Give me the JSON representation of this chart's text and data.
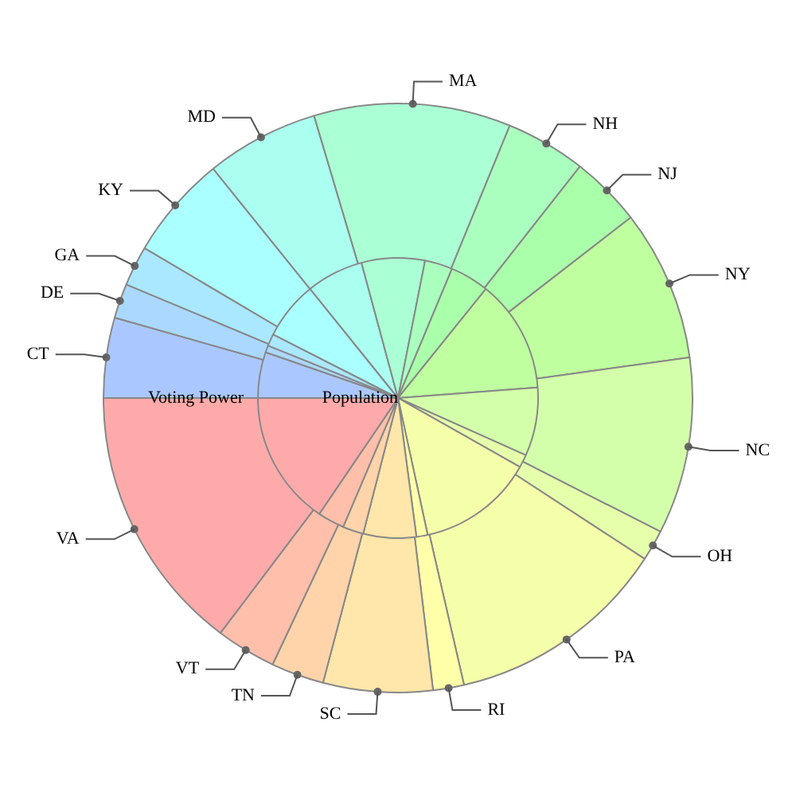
{
  "chart_data": {
    "type": "pie",
    "legend": false,
    "categories": [
      "CT",
      "DE",
      "GA",
      "KY",
      "MD",
      "MA",
      "NH",
      "NJ",
      "NY",
      "NC",
      "OH",
      "PA",
      "RI",
      "SC",
      "TN",
      "VT",
      "VA"
    ],
    "colors": [
      "#aac8ff",
      "#aad8ff",
      "#aae8ff",
      "#aaffff",
      "#aafff0",
      "#aaffd4",
      "#aaffbf",
      "#aaffaa",
      "#bfffa0",
      "#d4ffaa",
      "#e6ffaa",
      "#f5ffaa",
      "#ffffaa",
      "#ffe6aa",
      "#ffd4aa",
      "#ffbfaa",
      "#ffaaaa"
    ],
    "series": [
      {
        "name": "Voting Power",
        "values": [
          4.4,
          1.9,
          2.2,
          5.7,
          6.2,
          10.8,
          4.4,
          3.9,
          8.3,
          9.7,
          1.7,
          12.2,
          1.7,
          6.0,
          2.9,
          3.3,
          14.7
        ]
      },
      {
        "name": "Population",
        "values": [
          5.3,
          0.8,
          1.4,
          6.7,
          6.6,
          7.3,
          3.2,
          4.5,
          13.0,
          7.9,
          1.5,
          13.4,
          1.3,
          6.1,
          2.4,
          3.1,
          15.5
        ]
      }
    ]
  }
}
